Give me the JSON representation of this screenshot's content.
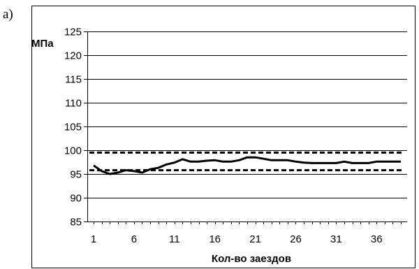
{
  "panel_label": "а)",
  "chart_data": {
    "type": "line",
    "xlabel": "Кол-во заездов",
    "ylabel": "МПа",
    "ylim": [
      85,
      125
    ],
    "yticks": [
      85,
      90,
      95,
      100,
      105,
      110,
      115,
      120,
      125
    ],
    "xlim": [
      1,
      39
    ],
    "xticks": [
      1,
      6,
      11,
      16,
      21,
      26,
      31,
      36
    ],
    "grid": "horizontal",
    "legend": "none",
    "series": [
      {
        "style": "solid",
        "color": "#000000",
        "x": [
          1,
          2,
          3,
          4,
          5,
          6,
          7,
          8,
          9,
          10,
          11,
          12,
          13,
          14,
          15,
          16,
          17,
          18,
          19,
          20,
          21,
          22,
          23,
          24,
          25,
          26,
          27,
          28,
          29,
          30,
          31,
          32,
          33,
          34,
          35,
          36,
          37,
          38,
          39
        ],
        "y": [
          96.8,
          95.6,
          95.0,
          95.3,
          95.8,
          95.6,
          95.3,
          96.0,
          96.3,
          97.0,
          97.4,
          98.1,
          97.6,
          97.6,
          97.8,
          97.9,
          97.6,
          97.6,
          97.9,
          98.5,
          98.5,
          98.2,
          97.9,
          97.9,
          97.9,
          97.6,
          97.4,
          97.3,
          97.3,
          97.3,
          97.3,
          97.6,
          97.3,
          97.3,
          97.3,
          97.6,
          97.6,
          97.6,
          97.6
        ]
      },
      {
        "style": "dashed",
        "color": "#000000",
        "x": [
          1,
          39
        ],
        "y": [
          99.5,
          99.5
        ]
      },
      {
        "style": "dashed",
        "color": "#000000",
        "x": [
          1,
          39
        ],
        "y": [
          95.8,
          95.8
        ]
      }
    ]
  }
}
